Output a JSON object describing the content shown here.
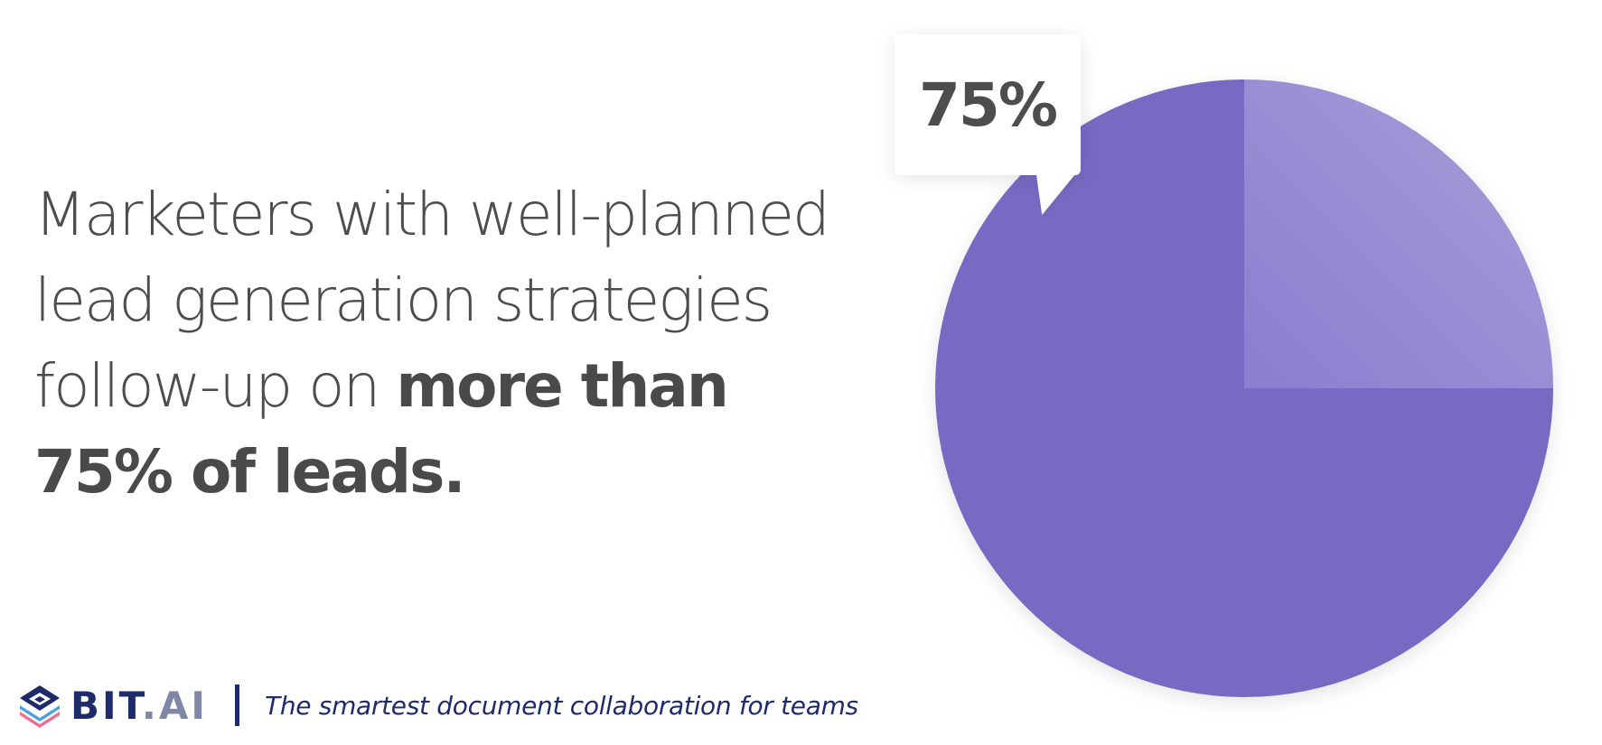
{
  "headline": {
    "line1": "Marketers with well-planned",
    "line2": "lead generation strategies",
    "line3_regular": "follow-up on ",
    "line3_bold": "more than",
    "line4_bold": "75% of leads."
  },
  "callout": {
    "label": "75%"
  },
  "footer": {
    "brand_main": "BIT",
    "brand_dot_ai": ".AI",
    "tagline": "The smartest document collaboration for teams"
  },
  "colors": {
    "main_slice": "#786bc3",
    "minor_slice_light": "#a79ed8",
    "minor_slice_dark": "#8a7ed0",
    "text": "#4d4d4d",
    "brand_navy": "#1d2b6b"
  },
  "chart_data": {
    "type": "pie",
    "slices": [
      {
        "value": 75
      },
      {
        "value": 25
      }
    ],
    "annotation": "75%"
  }
}
